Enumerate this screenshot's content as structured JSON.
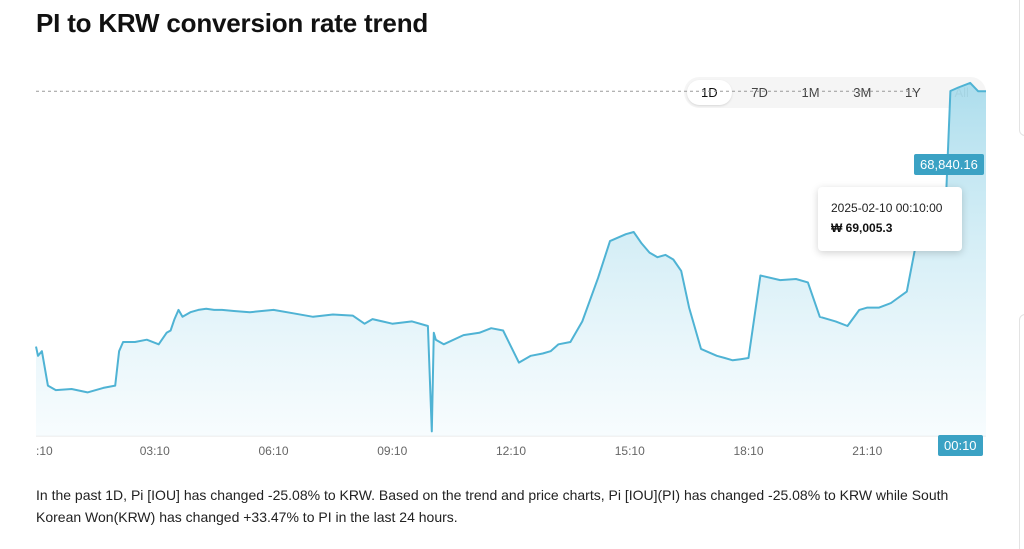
{
  "title": "PI to KRW conversion rate trend",
  "range_tabs": [
    {
      "label": "1D",
      "active": true
    },
    {
      "label": "7D",
      "active": false
    },
    {
      "label": "1M",
      "active": false
    },
    {
      "label": "3M",
      "active": false
    },
    {
      "label": "1Y",
      "active": false
    },
    {
      "label": "All",
      "active": false
    }
  ],
  "current_price_label": "68,840.16",
  "current_time_label": "00:10",
  "tooltip": {
    "date": "2025-02-10 00:10:00",
    "value": "₩ 69,005.3"
  },
  "description": "In the past 1D, Pi [IOU] has changed -25.08% to KRW. Based on the trend and price charts, Pi [IOU](PI) has changed -25.08% to KRW while South Korean Won(KRW) has changed +33.47% to PI in the last 24 hours.",
  "colors": {
    "line": "#4fb3d4",
    "fill_top": "#a9dcec",
    "fill_bottom": "#f2fafd",
    "tag": "#3ba2c4"
  },
  "chart_data": {
    "type": "area",
    "x_tick_labels": [
      ":10",
      "03:10",
      "06:10",
      "09:10",
      "12:10",
      "15:10",
      "18:10",
      "21:10"
    ],
    "ylim": [
      53800,
      70200
    ],
    "current_value": 68840.16,
    "x_hours": [
      0,
      0.05,
      0.15,
      0.3,
      0.5,
      0.9,
      1.3,
      1.7,
      2.0,
      2.1,
      2.2,
      2.5,
      2.8,
      3.1,
      3.3,
      3.4,
      3.5,
      3.6,
      3.7,
      3.9,
      4.1,
      4.3,
      4.5,
      4.7,
      5.0,
      5.4,
      6.0,
      6.5,
      7.0,
      7.5,
      8.0,
      8.3,
      8.5,
      9.0,
      9.5,
      9.9,
      10.0,
      10.05,
      10.1,
      10.3,
      10.8,
      11.2,
      11.5,
      11.8,
      12.2,
      12.5,
      12.8,
      13.0,
      13.2,
      13.5,
      13.8,
      14.2,
      14.5,
      14.9,
      15.1,
      15.3,
      15.5,
      15.7,
      15.9,
      16.1,
      16.3,
      16.5,
      16.8,
      17.2,
      17.4,
      17.6,
      17.8,
      18.0,
      18.3,
      18.8,
      19.2,
      19.5,
      19.8,
      20.2,
      20.5,
      20.8,
      21.0,
      21.3,
      21.6,
      22.0,
      22.4,
      22.8,
      23.0,
      23.1,
      23.3,
      23.6,
      23.8,
      24.0
    ],
    "values": [
      57700,
      57300,
      57500,
      56000,
      55800,
      55850,
      55700,
      55900,
      56000,
      57500,
      57900,
      57900,
      58000,
      57800,
      58300,
      58400,
      58900,
      59300,
      59000,
      59200,
      59300,
      59350,
      59300,
      59300,
      59250,
      59200,
      59300,
      59150,
      59000,
      59100,
      59050,
      58700,
      58900,
      58700,
      58800,
      58600,
      54000,
      58300,
      58000,
      57800,
      58200,
      58300,
      58500,
      58400,
      57000,
      57300,
      57400,
      57500,
      57800,
      57900,
      58800,
      60700,
      62300,
      62600,
      62700,
      62200,
      61800,
      61600,
      61700,
      61500,
      61000,
      59400,
      57600,
      57300,
      57200,
      57100,
      57150,
      57200,
      60800,
      60600,
      60650,
      60500,
      59000,
      58800,
      58600,
      59300,
      59400,
      59400,
      59600,
      60100,
      63700,
      64100,
      64600,
      68850,
      69000,
      69200,
      68840,
      68840
    ]
  }
}
